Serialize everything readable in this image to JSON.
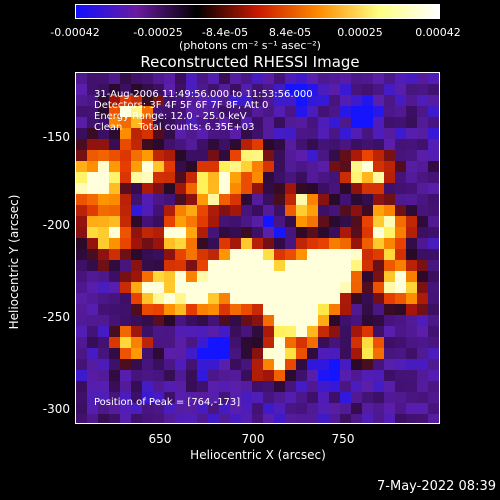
{
  "title": "Reconstructed RHESSI Image",
  "colorbar": {
    "ticks": [
      "-0.00042",
      "-0.00025",
      "-8.4e-05",
      "8.4e-05",
      "0.00025",
      "0.00042"
    ],
    "units": "(photons cm⁻² s⁻¹ asec⁻²)",
    "colors": [
      "#1010ff",
      "#6a1aa0",
      "#000000",
      "#c81800",
      "#ff8a00",
      "#ffff80",
      "#ffffff"
    ]
  },
  "annotations": {
    "line1": "31-Aug-2006 11:49:56.000 to 11:53:56.000",
    "line2": "Detectors: 3F 4F 5F 6F 7F 8F, Att 0",
    "line3": "Energy Range: 12.0 - 25.0 keV",
    "line4": "Clean     Total counts: 6.35E+03",
    "peak": "Position of Peak = [764,-173]"
  },
  "footer": "7-May-2022 08:39",
  "chart_data": {
    "type": "heatmap",
    "title": "Reconstructed RHESSI Image",
    "xlabel": "Heliocentric X (arcsec)",
    "ylabel": "Heliocentric Y (arcsec)",
    "xlim": [
      604,
      792
    ],
    "ylim": [
      -314,
      -132
    ],
    "x_ticks": [
      "650",
      "700",
      "750"
    ],
    "y_ticks": [
      "-150",
      "-200",
      "-250",
      "-300"
    ],
    "colorbar_range": [
      -0.00042,
      0.00042
    ],
    "peak_position": [
      764,
      -173
    ]
  }
}
